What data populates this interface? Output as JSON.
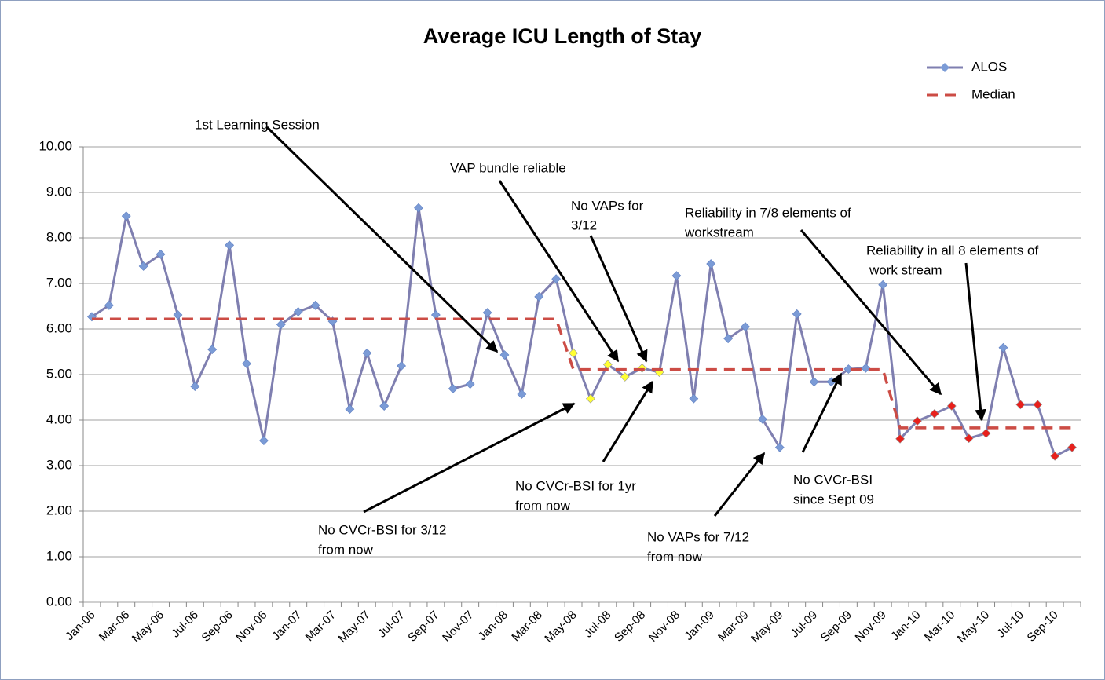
{
  "chart_data": {
    "type": "line",
    "title": "Average ICU Length of Stay",
    "categories": [
      "Jan-06",
      null,
      "Mar-06",
      null,
      "May-06",
      null,
      "Jul-06",
      null,
      "Sep-06",
      null,
      "Nov-06",
      null,
      "Jan-07",
      null,
      "Mar-07",
      null,
      "May-07",
      null,
      "Jul-07",
      null,
      "Sep-07",
      null,
      "Nov-07",
      null,
      "Jan-08",
      null,
      "Mar-08",
      null,
      "May-08",
      null,
      "Jul-08",
      null,
      "Sep-08",
      null,
      "Nov-08",
      null,
      "Jan-09",
      null,
      "Mar-09",
      null,
      "May-09",
      null,
      "Jul-09",
      null,
      "Sep-09",
      null,
      "Nov-09",
      null,
      "Jan-10",
      null,
      "Mar-10",
      null,
      "May-10",
      null,
      "Jul-10",
      null,
      "Sep-10",
      null
    ],
    "series": [
      {
        "name": "ALOS",
        "color": "#7f7fb0",
        "marker_color": "#7b9bd6",
        "values": [
          6.27,
          6.52,
          8.48,
          7.38,
          7.64,
          6.31,
          4.74,
          5.55,
          7.84,
          5.24,
          3.55,
          6.1,
          6.38,
          6.52,
          6.17,
          4.24,
          5.47,
          4.31,
          5.19,
          8.66,
          6.31,
          4.69,
          4.79,
          6.36,
          5.43,
          4.57,
          6.71,
          7.1,
          5.47,
          4.47,
          5.22,
          4.95,
          5.14,
          5.05,
          7.17,
          4.47,
          7.43,
          5.79,
          6.05,
          4.02,
          3.4,
          6.33,
          4.84,
          4.84,
          5.12,
          5.14,
          6.97,
          3.59,
          3.98,
          4.14,
          4.31,
          3.6,
          3.71,
          5.59,
          4.34,
          4.34,
          3.21,
          3.4
        ],
        "point_colors": [
          "#7b9bd6",
          "#7b9bd6",
          "#7b9bd6",
          "#7b9bd6",
          "#7b9bd6",
          "#7b9bd6",
          "#7b9bd6",
          "#7b9bd6",
          "#7b9bd6",
          "#7b9bd6",
          "#7b9bd6",
          "#7b9bd6",
          "#7b9bd6",
          "#7b9bd6",
          "#7b9bd6",
          "#7b9bd6",
          "#7b9bd6",
          "#7b9bd6",
          "#7b9bd6",
          "#7b9bd6",
          "#7b9bd6",
          "#7b9bd6",
          "#7b9bd6",
          "#7b9bd6",
          "#7b9bd6",
          "#7b9bd6",
          "#7b9bd6",
          "#7b9bd6",
          "#ffff33",
          "#ffff33",
          "#ffff33",
          "#ffff33",
          "#ffff33",
          "#ffff33",
          "#7b9bd6",
          "#7b9bd6",
          "#7b9bd6",
          "#7b9bd6",
          "#7b9bd6",
          "#7b9bd6",
          "#7b9bd6",
          "#7b9bd6",
          "#7b9bd6",
          "#7b9bd6",
          "#7b9bd6",
          "#7b9bd6",
          "#7b9bd6",
          "#e8201c",
          "#e8201c",
          "#e8201c",
          "#e8201c",
          "#e8201c",
          "#e8201c",
          "#7b9bd6",
          "#e8201c",
          "#e8201c",
          "#e8201c",
          "#e8201c"
        ]
      },
      {
        "name": "Median",
        "color": "#cc4c45",
        "dashed": true,
        "values": [
          6.22,
          6.22,
          6.22,
          6.22,
          6.22,
          6.22,
          6.22,
          6.22,
          6.22,
          6.22,
          6.22,
          6.22,
          6.22,
          6.22,
          6.22,
          6.22,
          6.22,
          6.22,
          6.22,
          6.22,
          6.22,
          6.22,
          6.22,
          6.22,
          6.22,
          6.22,
          6.22,
          6.22,
          5.11,
          5.11,
          5.11,
          5.11,
          5.11,
          5.11,
          5.11,
          5.11,
          5.11,
          5.11,
          5.11,
          5.11,
          5.11,
          5.11,
          5.11,
          5.11,
          5.11,
          5.11,
          5.11,
          3.83,
          3.83,
          3.83,
          3.83,
          3.83,
          3.83,
          3.83,
          3.83,
          3.83,
          3.83,
          3.83
        ]
      }
    ],
    "ylim": [
      0,
      10
    ],
    "yticks": [
      {
        "value": 0,
        "label": "0.00"
      },
      {
        "value": 1,
        "label": "1.00"
      },
      {
        "value": 2,
        "label": "2.00"
      },
      {
        "value": 3,
        "label": "3.00"
      },
      {
        "value": 4,
        "label": "4.00"
      },
      {
        "value": 5,
        "label": "5.00"
      },
      {
        "value": 6,
        "label": "6.00"
      },
      {
        "value": 7,
        "label": "7.00"
      },
      {
        "value": 8,
        "label": "8.00"
      },
      {
        "value": 9,
        "label": "9.00"
      },
      {
        "value": 10,
        "label": "10.00"
      }
    ],
    "grid": true,
    "legend": "top-right",
    "annotations": [
      {
        "lines": [
          "1st Learning Session"
        ]
      },
      {
        "lines": [
          "VAP bundle reliable"
        ]
      },
      {
        "lines": [
          "No VAPs for",
          "3/12"
        ]
      },
      {
        "lines": [
          "Reliability in 7/8 elements of",
          "workstream"
        ]
      },
      {
        "lines": [
          "Reliability in all 8 elements of",
          "work stream"
        ]
      },
      {
        "lines": [
          "No CVCr-BSI for 3/12",
          "from now"
        ]
      },
      {
        "lines": [
          "No CVCr-BSI for 1yr",
          "from now"
        ]
      },
      {
        "lines": [
          "No VAPs for 7/12",
          "from now"
        ]
      },
      {
        "lines": [
          "No CVCr-BSI",
          "since Sept 09"
        ]
      }
    ]
  }
}
